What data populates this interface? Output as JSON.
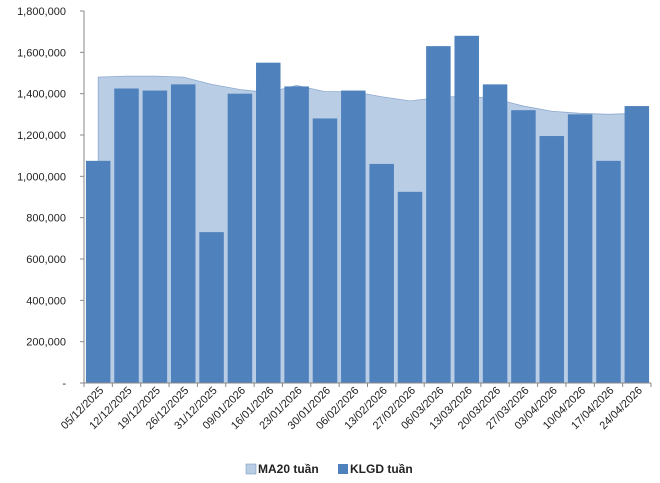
{
  "chart_data": {
    "type": "bar",
    "categories": [
      "05/12/2025",
      "12/12/2025",
      "19/12/2025",
      "26/12/2025",
      "31/12/2025",
      "09/01/2026",
      "16/01/2026",
      "23/01/2026",
      "30/01/2026",
      "06/02/2026",
      "13/02/2026",
      "27/02/2026",
      "06/03/2026",
      "13/03/2026",
      "20/03/2026",
      "27/03/2026",
      "03/04/2026",
      "10/04/2026",
      "17/04/2026",
      "24/04/2026"
    ],
    "series": [
      {
        "name": "MA20 tuần",
        "type": "area",
        "color": "#b9cde5",
        "values": [
          1480000,
          1485000,
          1485000,
          1480000,
          1445000,
          1420000,
          1405000,
          1440000,
          1410000,
          1410000,
          1385000,
          1365000,
          1380000,
          1390000,
          1375000,
          1340000,
          1315000,
          1305000,
          1300000,
          1305000
        ]
      },
      {
        "name": "KLGD tuần",
        "type": "bar",
        "color": "#4f81bd",
        "values": [
          1075000,
          1425000,
          1415000,
          1445000,
          730000,
          1400000,
          1550000,
          1435000,
          1280000,
          1415000,
          1060000,
          925000,
          1630000,
          1680000,
          1445000,
          1320000,
          1195000,
          1300000,
          1075000,
          1340000
        ]
      }
    ],
    "ylim": [
      0,
      1800000
    ],
    "yticks": [
      0,
      200000,
      400000,
      600000,
      800000,
      1000000,
      1200000,
      1400000,
      1600000,
      1800000
    ],
    "ytick_labels": [
      "-",
      "200,000",
      "400,000",
      "600,000",
      "800,000",
      "1,000,000",
      "1,200,000",
      "1,400,000",
      "1,600,000",
      "1,800,000"
    ],
    "legend_position": "bottom",
    "grid": false
  }
}
